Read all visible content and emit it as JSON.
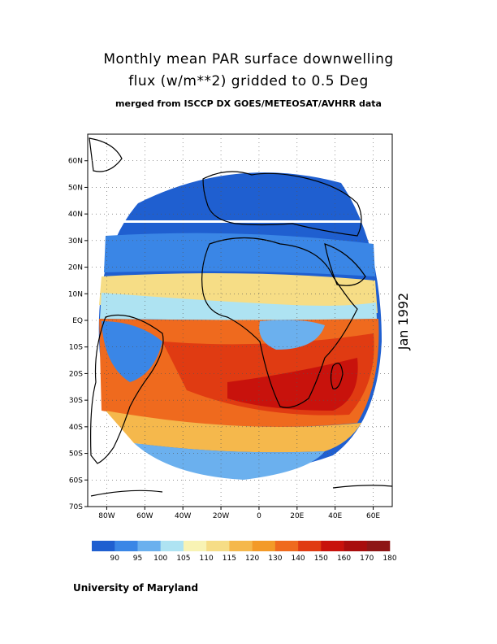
{
  "title": {
    "line1": "Monthly mean PAR surface downwelling",
    "line2": "flux (w/m**2) gridded to 0.5 Deg",
    "line3": "merged from ISCCP DX GOES/METEOSAT/AVHRR data"
  },
  "date_label": "Jan 1992",
  "footer": "University of Maryland",
  "map": {
    "lon_range": [
      -90,
      70
    ],
    "lat_range": [
      -70,
      70
    ],
    "lat_ticks": [
      {
        "value": 60,
        "label": "60N"
      },
      {
        "value": 50,
        "label": "50N"
      },
      {
        "value": 40,
        "label": "40N"
      },
      {
        "value": 30,
        "label": "30N"
      },
      {
        "value": 20,
        "label": "20N"
      },
      {
        "value": 10,
        "label": "10N"
      },
      {
        "value": 0,
        "label": "EQ"
      },
      {
        "value": -10,
        "label": "10S"
      },
      {
        "value": -20,
        "label": "20S"
      },
      {
        "value": -30,
        "label": "30S"
      },
      {
        "value": -40,
        "label": "40S"
      },
      {
        "value": -50,
        "label": "50S"
      },
      {
        "value": -60,
        "label": "60S"
      },
      {
        "value": -70,
        "label": "70S"
      }
    ],
    "lon_ticks": [
      {
        "value": -80,
        "label": "80W"
      },
      {
        "value": -60,
        "label": "60W"
      },
      {
        "value": -40,
        "label": "40W"
      },
      {
        "value": -20,
        "label": "20W"
      },
      {
        "value": 0,
        "label": "0"
      },
      {
        "value": 20,
        "label": "20E"
      },
      {
        "value": 40,
        "label": "40E"
      },
      {
        "value": 60,
        "label": "60E"
      }
    ],
    "grid": "dotted"
  },
  "colorbar": {
    "colors": [
      "#1f5fd0",
      "#3a86e6",
      "#6bb0ee",
      "#aee3f2",
      "#f8f3b4",
      "#f6dd86",
      "#f5b84c",
      "#f39a28",
      "#ef6a1e",
      "#e03b12",
      "#c8120c",
      "#a80d0d",
      "#8e1616"
    ],
    "labels": [
      "90",
      "95",
      "100",
      "105",
      "110",
      "115",
      "120",
      "130",
      "140",
      "150",
      "160",
      "170",
      "180"
    ]
  },
  "colors": {
    "land_outline": "#000000",
    "background": "#ffffff"
  }
}
